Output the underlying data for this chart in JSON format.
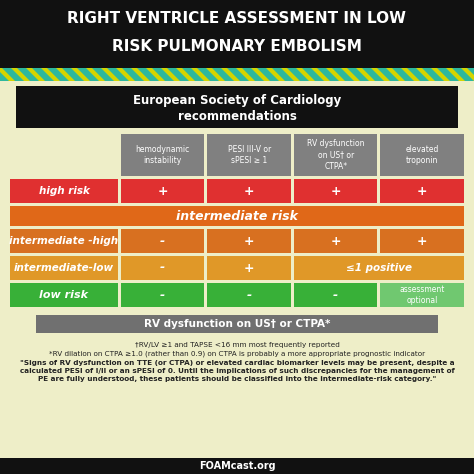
{
  "title_line1": "RIGHT VENTRICLE ASSESSMENT IN LOW",
  "title_line2": "RISK PULMONARY EMBOLISM",
  "title_bg": "#111111",
  "title_color": "#ffffff",
  "stripe_teal": "#2db89e",
  "stripe_yellow": "#d4d400",
  "body_bg": "#eeeec8",
  "esc_box_bg": "#111111",
  "esc_box_color": "#ffffff",
  "esc_text_line1": "European Society of Cardiology",
  "esc_text_line2": "recommendations",
  "col_header_bg": "#808080",
  "col_header_color": "#ffffff",
  "col_headers": [
    "hemodynamic\ninstability",
    "PESI III-V or\nsPESI ≥ 1",
    "RV dysfunction\non US† or\nCTPA*",
    "elevated\ntroponin"
  ],
  "high_risk_bg": "#e03030",
  "high_risk_label": "high risk",
  "high_risk_cells": [
    "+",
    "+",
    "+",
    "+"
  ],
  "inter_risk_bg": "#e06818",
  "inter_risk_label": "intermediate risk",
  "inter_high_bg": "#d87020",
  "inter_high_label": "intermediate -high",
  "inter_high_cells": [
    "-",
    "+",
    "+",
    "+"
  ],
  "inter_low_bg": "#e09828",
  "inter_low_label": "intermediate-low",
  "inter_low_cells": [
    "-",
    "+",
    "≤1 positive",
    ""
  ],
  "low_risk_bg": "#38b038",
  "low_risk_label": "low risk",
  "low_risk_cells": [
    "-",
    "-",
    "-",
    "assessment\noptional"
  ],
  "low_risk_opt_bg": "#70c870",
  "rv_box_bg": "#707070",
  "rv_box_color": "#ffffff",
  "rv_box_text": "RV dysfunction on US† or CTPA*",
  "footnote1": "†RV/LV ≥1 and TAPSE <16 mm most frequently reported",
  "footnote2": "*RV dilation on CTPA ≥1.0 (rather than 0.9) on CTPA is probably a more appropriate prognostic indicator",
  "footnote3a": "\"Signs of RV dysfunction on TTE (or CTPA) or elevated cardiac biomarker levels may be present, despite a",
  "footnote3b": "calculated PESI of I/II or an sPESI of 0. Until the implications of such discrepancies for the management of",
  "footnote3c": "PE are fully understood, these patients should be classified into the intermediate-risk category.\"",
  "foamcast": "FOAMcast.org",
  "footer_bg": "#111111",
  "footer_color": "#ffffff",
  "white": "#ffffff",
  "text_dark": "#222222"
}
